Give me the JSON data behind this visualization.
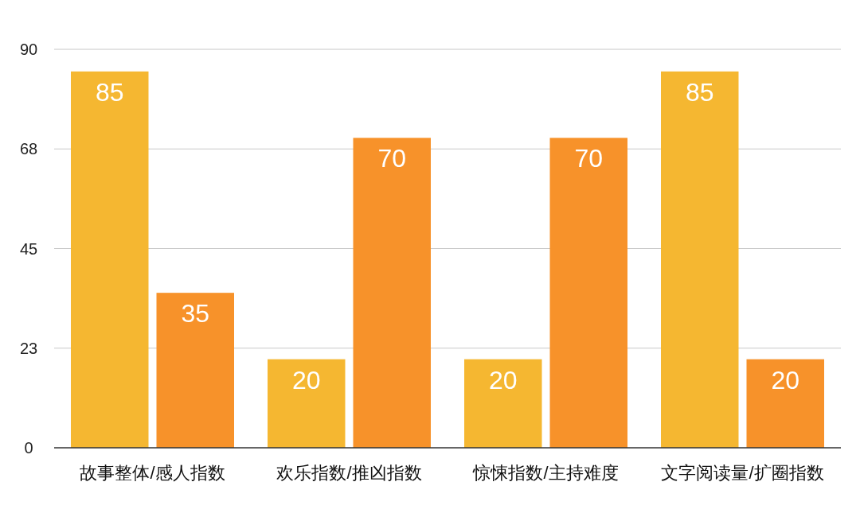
{
  "chart_data": {
    "type": "bar",
    "categories": [
      "故事整体/感人指数",
      "欢乐指数/推凶指数",
      "惊悚指数/主持难度",
      "文字阅读量/扩圈指数"
    ],
    "series": [
      {
        "color": "#f5b731",
        "values": [
          85,
          20,
          20,
          85
        ]
      },
      {
        "color": "#f7922a",
        "values": [
          35,
          70,
          70,
          20
        ]
      }
    ],
    "ylim": [
      0,
      90
    ],
    "yticks": [
      0,
      {
        "value": 22.5,
        "label": "23"
      },
      45,
      {
        "value": 67.5,
        "label": "68"
      },
      90
    ],
    "grid": "y",
    "data_labels": true
  }
}
